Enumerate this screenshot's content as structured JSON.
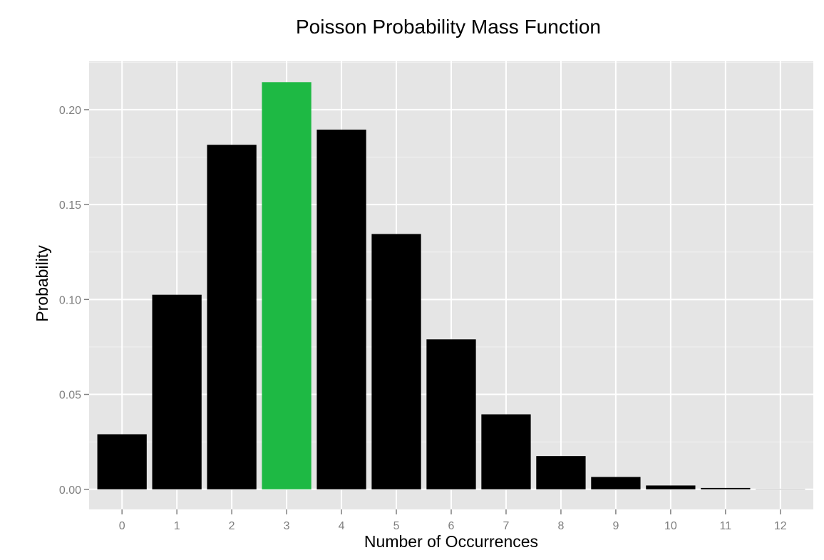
{
  "chart_data": {
    "type": "bar",
    "title": "Poisson Probability Mass Function",
    "xlabel": "Number of Occurrences",
    "ylabel": "Probability",
    "categories": [
      "0",
      "1",
      "2",
      "3",
      "4",
      "5",
      "6",
      "7",
      "8",
      "9",
      "10",
      "11",
      "12"
    ],
    "values": [
      0.029,
      0.1025,
      0.1815,
      0.2145,
      0.1895,
      0.1345,
      0.079,
      0.0395,
      0.0175,
      0.0065,
      0.002,
      0.0007,
      0.0001
    ],
    "highlight_index": 3,
    "bar_color": "#000000",
    "highlight_color": "#1eb944",
    "panel_background": "#e5e5e5",
    "grid_color": "#ffffff",
    "grid": true,
    "legend": "none",
    "xlim": [
      -0.6,
      12.6
    ],
    "ylim": [
      -0.0106,
      0.2255
    ],
    "yticks": [
      0.0,
      0.05,
      0.1,
      0.15,
      0.2
    ],
    "ytick_labels": [
      "0.00",
      "0.05",
      "0.10",
      "0.15",
      "0.20"
    ]
  }
}
